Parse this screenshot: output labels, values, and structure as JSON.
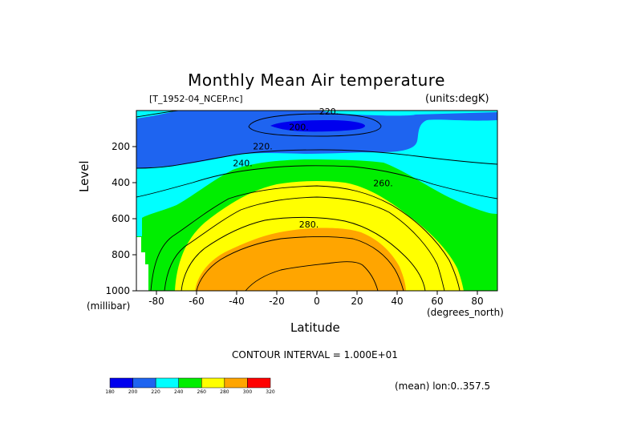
{
  "header": {
    "title": "Monthly Mean Air temperature",
    "file": "[T_1952-04_NCEP.nc]",
    "units": "(units:degK)"
  },
  "footer": {
    "contour_interval": "CONTOUR INTERVAL = 1.000E+01",
    "mean_note": "(mean) lon:0..357.5"
  },
  "colors": {
    "c180": "#0000ee",
    "c200": "#1e64f0",
    "c220": "#00ffff",
    "c240": "#00ee00",
    "c260": "#ffff00",
    "c280": "#ffa500",
    "c300": "#ff0000"
  },
  "chart_data": {
    "type": "contour",
    "title": "Monthly Mean Air temperature",
    "xlabel": "Latitude",
    "ylabel": "Level",
    "x_unit_label": "(degrees_north)",
    "y_unit_label": "(millibar)",
    "xlim": [
      -90,
      90
    ],
    "ylim": [
      1000,
      0
    ],
    "x_ticks": [
      -80,
      -60,
      -40,
      -20,
      0,
      20,
      40,
      60,
      80
    ],
    "y_ticks": [
      200,
      400,
      600,
      800,
      1000
    ],
    "contour_levels": [
      200,
      220,
      240,
      260,
      280
    ],
    "contour_labels": [
      {
        "text": "220.",
        "lat": 6,
        "level": 5
      },
      {
        "text": "200.",
        "lat": -9,
        "level": 90
      },
      {
        "text": "220.",
        "lat": -27,
        "level": 198
      },
      {
        "text": "240.",
        "lat": -37,
        "level": 290
      },
      {
        "text": "260.",
        "lat": 33,
        "level": 402
      },
      {
        "text": "280.",
        "lat": -4,
        "level": 630
      }
    ],
    "colorbar": {
      "levels": [
        180,
        200,
        220,
        240,
        260,
        280,
        300,
        320
      ],
      "tick_labels": [
        "180",
        "200",
        "220",
        "240",
        "260",
        "280",
        "300",
        "320"
      ]
    },
    "contour_interval": 10,
    "units": "degK"
  }
}
